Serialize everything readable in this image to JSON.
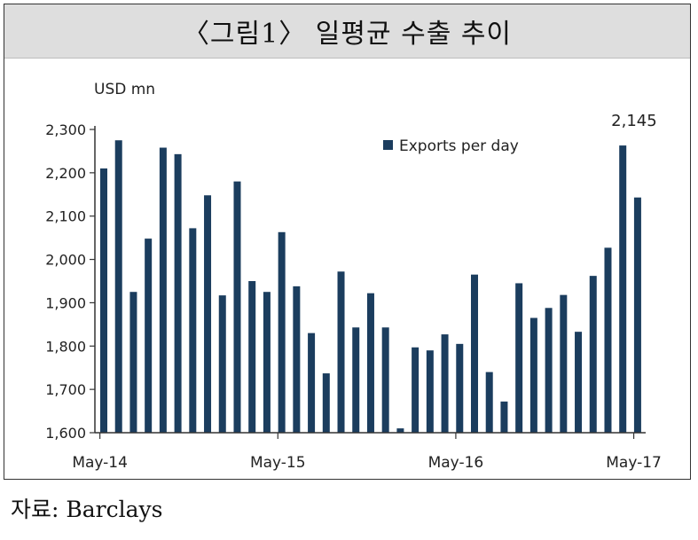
{
  "header": {
    "title": "〈그림1〉 일평균 수출 추이"
  },
  "footer": {
    "source": "자료: Barclays"
  },
  "chart_data": {
    "type": "bar",
    "title": "〈그림1〉 일평균 수출 추이",
    "ylabel": "USD mn",
    "xlabel": "",
    "ylim": [
      1600,
      2300
    ],
    "yticks": [
      1600,
      1700,
      1800,
      1900,
      2000,
      2100,
      2200,
      2300
    ],
    "ytick_labels": [
      "1,600",
      "1,700",
      "1,800",
      "1,900",
      "2,000",
      "2,100",
      "2,200",
      "2,300"
    ],
    "xtick_labels": [
      {
        "label": "May-14",
        "index": 0
      },
      {
        "label": "May-15",
        "index": 12
      },
      {
        "label": "May-16",
        "index": 24
      },
      {
        "label": "May-17",
        "index": 36
      }
    ],
    "legend": {
      "position": "top-right",
      "entries": [
        "Exports per day"
      ]
    },
    "annotations": [
      {
        "text": "2,145",
        "index": 36
      }
    ],
    "bar_color": "#1b3d5e",
    "series": [
      {
        "name": "Exports per day",
        "values": [
          2210,
          2275,
          1925,
          2048,
          2258,
          2243,
          2072,
          2148,
          1917,
          2180,
          1950,
          1925,
          2063,
          1938,
          1830,
          1737,
          1972,
          1843,
          1922,
          1843,
          1610,
          1797,
          1790,
          1827,
          1805,
          1965,
          1740,
          1672,
          1945,
          1865,
          1888,
          1918,
          1833,
          1962,
          2027,
          2263,
          2143
        ]
      }
    ]
  }
}
